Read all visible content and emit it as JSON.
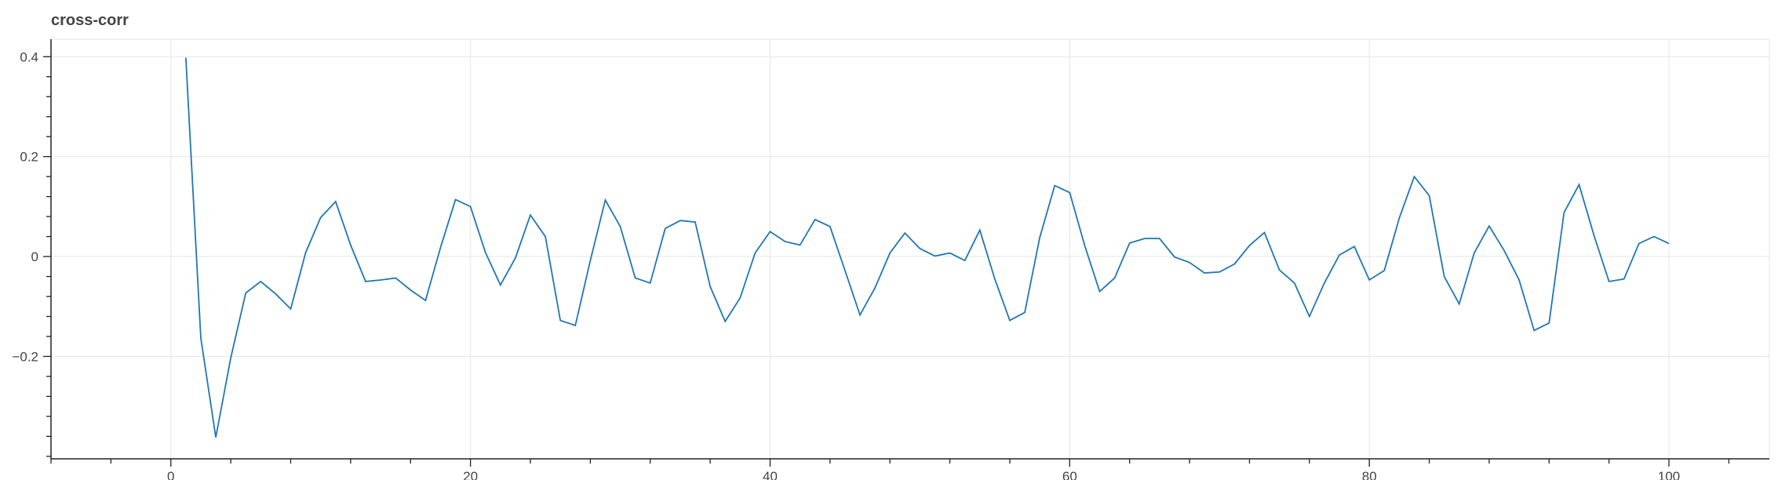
{
  "chart_data": {
    "type": "line",
    "title": "cross-corr",
    "xlabel": "",
    "ylabel": "",
    "xlim": [
      -8,
      106.7
    ],
    "ylim": [
      -0.405,
      0.435
    ],
    "xticks": [
      0,
      20,
      40,
      60,
      80,
      100
    ],
    "xtick_labels": [
      "0",
      "20",
      "40",
      "60",
      "80",
      "100"
    ],
    "yticks": [
      0.4,
      0.2,
      0,
      -0.2
    ],
    "ytick_labels": [
      "0.4",
      "0.2",
      "0",
      "−0.2"
    ],
    "grid": true,
    "legend": "none",
    "line_color": "#1f77b4",
    "grid_color": "#e5e5e5",
    "axis_color": "#222222",
    "series": [
      {
        "x": [
          1,
          2,
          3,
          4,
          5,
          6,
          7,
          8,
          9,
          10,
          11,
          12,
          13,
          14,
          15,
          16,
          17,
          18,
          19,
          20,
          21,
          22,
          23,
          24,
          25,
          26,
          27,
          28,
          29,
          30,
          31,
          32,
          33,
          34,
          35,
          36,
          37,
          38,
          39,
          40,
          41,
          42,
          43,
          44,
          45,
          46,
          47,
          48,
          49,
          50,
          51,
          52,
          53,
          54,
          55,
          56,
          57,
          58,
          59,
          60,
          61,
          62,
          63,
          64,
          65,
          66,
          67,
          68,
          69,
          70,
          71,
          72,
          73,
          74,
          75,
          76,
          77,
          78,
          79,
          80,
          81,
          82,
          83,
          84,
          85,
          86,
          87,
          88,
          89,
          90,
          91,
          92,
          93,
          94,
          95,
          96,
          97,
          98,
          99,
          100
        ],
        "values": [
          0.398,
          -0.163,
          -0.362,
          -0.203,
          -0.073,
          -0.05,
          -0.075,
          -0.105,
          0.008,
          0.078,
          0.11,
          0.023,
          -0.05,
          -0.047,
          -0.043,
          -0.067,
          -0.088,
          0.018,
          0.114,
          0.1,
          0.008,
          -0.057,
          -0.003,
          0.083,
          0.04,
          -0.128,
          -0.138,
          -0.008,
          0.113,
          0.06,
          -0.043,
          -0.053,
          0.056,
          0.072,
          0.069,
          -0.06,
          -0.13,
          -0.083,
          0.007,
          0.05,
          0.03,
          0.023,
          0.074,
          0.06,
          -0.028,
          -0.117,
          -0.063,
          0.007,
          0.047,
          0.016,
          0.001,
          0.007,
          -0.008,
          0.053,
          -0.045,
          -0.128,
          -0.112,
          0.038,
          0.142,
          0.128,
          0.022,
          -0.07,
          -0.043,
          0.027,
          0.036,
          0.036,
          -0.001,
          -0.012,
          -0.033,
          -0.031,
          -0.015,
          0.022,
          0.048,
          -0.027,
          -0.053,
          -0.12,
          -0.053,
          0.003,
          0.02,
          -0.047,
          -0.028,
          0.077,
          0.16,
          0.122,
          -0.04,
          -0.095,
          0.007,
          0.061,
          0.012,
          -0.047,
          -0.148,
          -0.133,
          0.088,
          0.144,
          0.042,
          -0.05,
          -0.045,
          0.026,
          0.04,
          0.026
        ]
      }
    ]
  }
}
